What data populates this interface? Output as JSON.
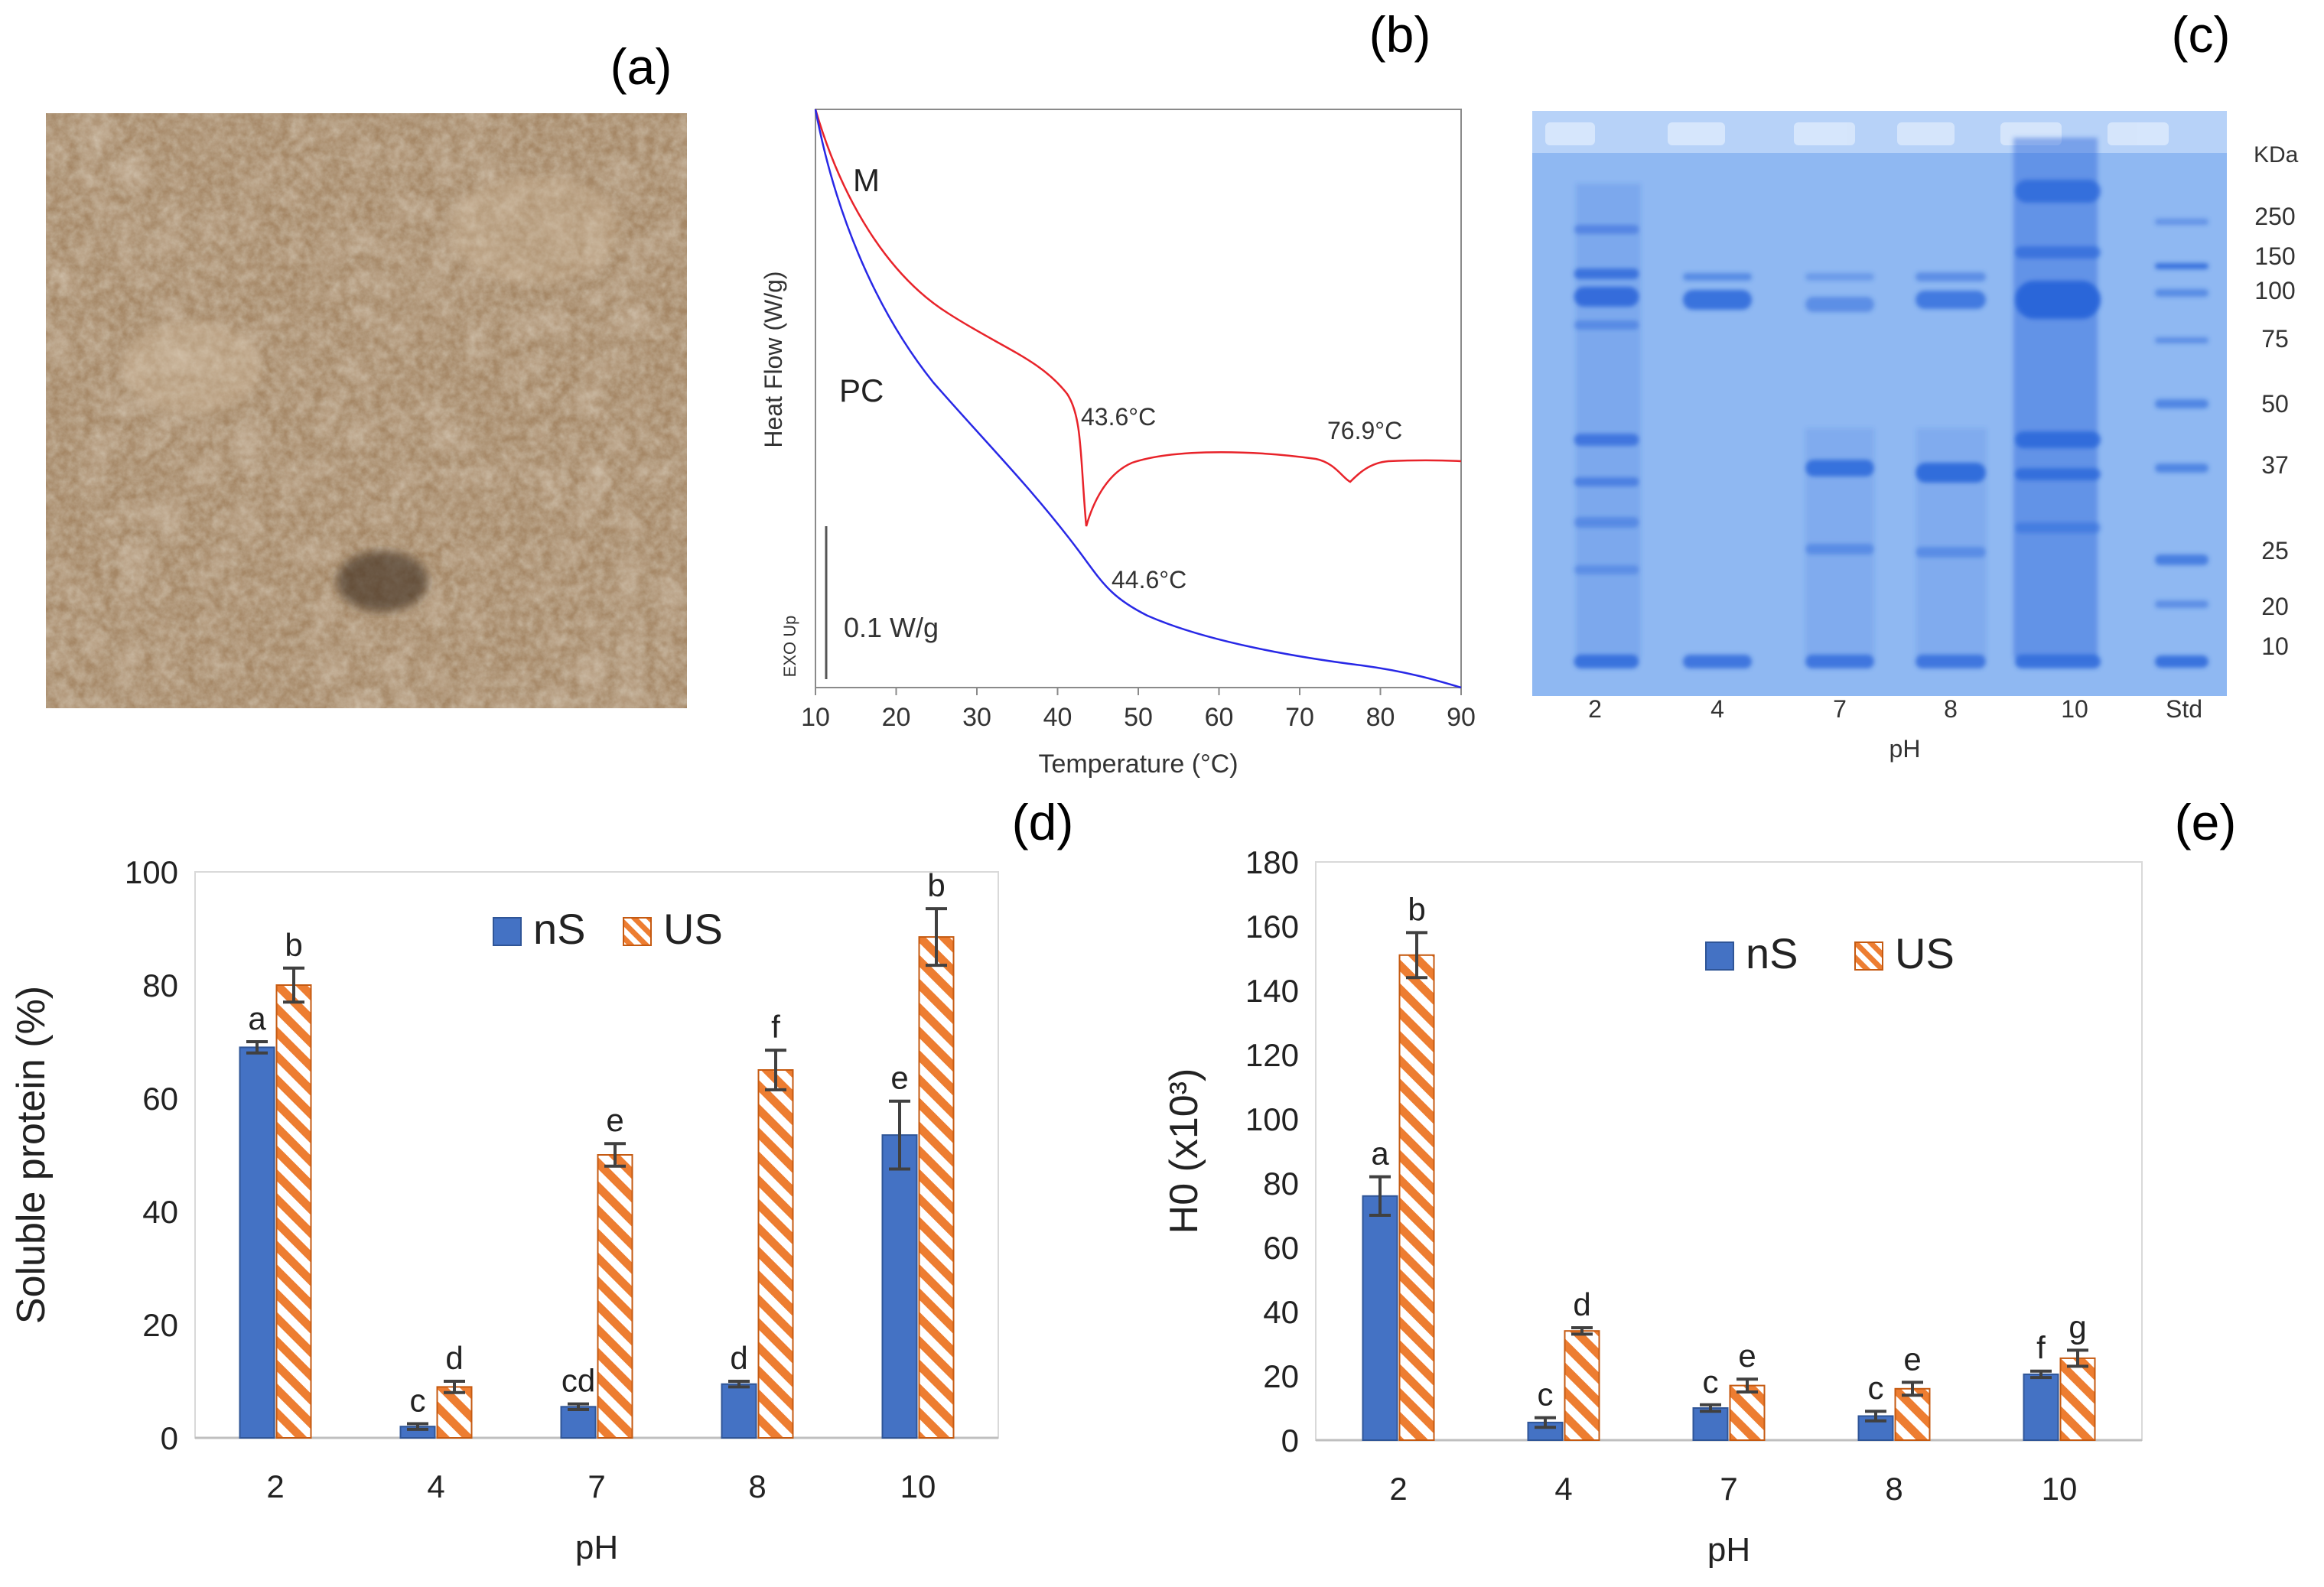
{
  "panels": {
    "a": {
      "label": "(a)"
    },
    "b": {
      "label": "(b)"
    },
    "c": {
      "label": "(c)"
    },
    "d": {
      "label": "(d)"
    },
    "e": {
      "label": "(e)"
    }
  },
  "colors": {
    "ns": "#4472c4",
    "us": "#ed7d31",
    "dsc_m": "#e8232a",
    "dsc_pc": "#2828e6",
    "gel_bg": "#8fb8f2",
    "gel_band": "#2a66d9",
    "powder": "#a58766"
  },
  "dsc": {
    "y_label": "Heat Flow (W/g)",
    "x_label": "Temperature (°C)",
    "exo_label": "EXO Up",
    "scale_label": "0.1 W/g",
    "x_ticks": [
      "10",
      "20",
      "30",
      "40",
      "50",
      "60",
      "70",
      "80",
      "90"
    ],
    "curve_m_label": "M",
    "curve_pc_label": "PC",
    "peak_m1": "43.6°C",
    "peak_m2": "76.9°C",
    "peak_pc": "44.6°C"
  },
  "gel": {
    "unit": "KDa",
    "markers": [
      "250",
      "150",
      "100",
      "75",
      "50",
      "37",
      "25",
      "20",
      "10"
    ],
    "lanes": [
      "2",
      "4",
      "7",
      "8",
      "10",
      "Std"
    ],
    "x_label": "pH"
  },
  "chart_data": [
    {
      "type": "bar",
      "panel": "d",
      "categories": [
        "2",
        "4",
        "7",
        "8",
        "10"
      ],
      "series": [
        {
          "name": "nS",
          "values": [
            69,
            2,
            5.5,
            9.5,
            53.5
          ],
          "errors": [
            1,
            0.5,
            0.5,
            0.5,
            6
          ],
          "letters": [
            "a",
            "c",
            "cd",
            "d",
            "e"
          ]
        },
        {
          "name": "US",
          "values": [
            80,
            9,
            50,
            65,
            88.5
          ],
          "errors": [
            3,
            1,
            2,
            3.5,
            5
          ],
          "letters": [
            "b",
            "d",
            "e",
            "f",
            "b"
          ]
        }
      ],
      "xlabel": "pH",
      "ylabel": "Soluble protein (%)",
      "ylim": [
        0,
        100
      ],
      "yticks": [
        "0",
        "20",
        "40",
        "60",
        "80",
        "100"
      ],
      "legend": "top-center"
    },
    {
      "type": "bar",
      "panel": "e",
      "categories": [
        "2",
        "4",
        "7",
        "8",
        "10"
      ],
      "series": [
        {
          "name": "nS",
          "values": [
            76,
            5.5,
            10,
            7.5,
            20.5
          ],
          "errors": [
            6,
            1.5,
            1,
            1.5,
            1
          ],
          "letters": [
            "a",
            "c",
            "c",
            "c",
            "f"
          ]
        },
        {
          "name": "US",
          "values": [
            151,
            34,
            17,
            16,
            25.5
          ],
          "errors": [
            7,
            1,
            2,
            2,
            2.5
          ],
          "letters": [
            "b",
            "d",
            "e",
            "e",
            "g"
          ]
        }
      ],
      "xlabel": "pH",
      "ylabel": "H0 (x10³)",
      "ylim": [
        0,
        180
      ],
      "yticks": [
        "0",
        "20",
        "40",
        "60",
        "80",
        "100",
        "120",
        "140",
        "160",
        "180"
      ],
      "legend": "top-center"
    }
  ]
}
